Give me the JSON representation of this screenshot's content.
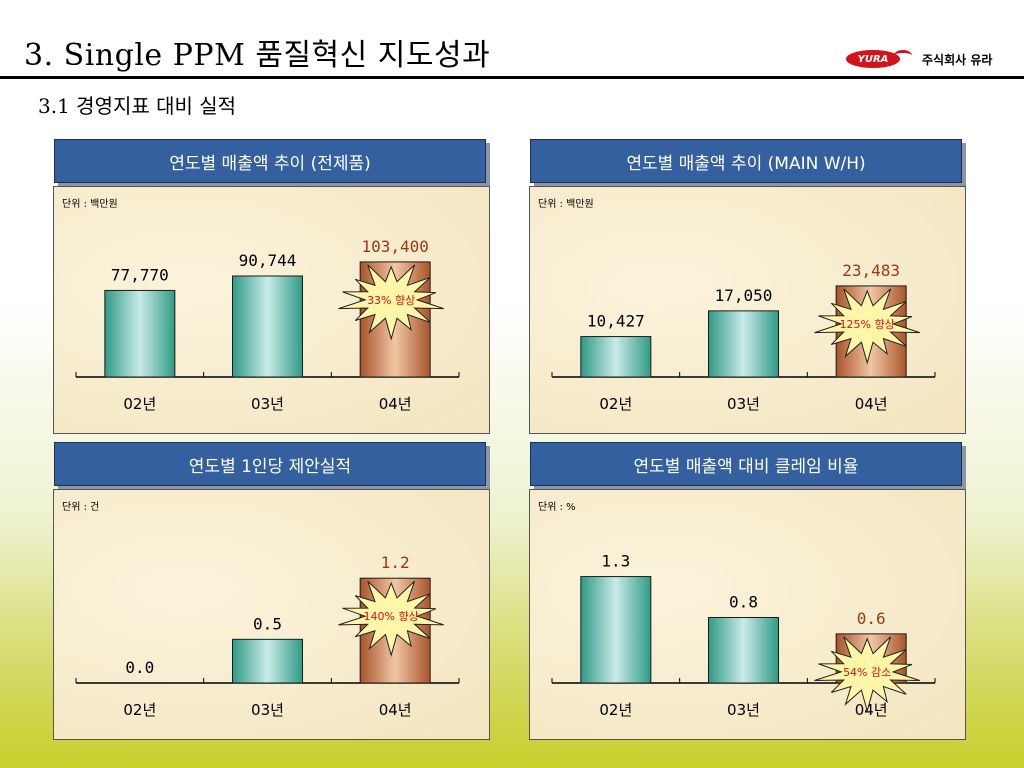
{
  "page": {
    "title": "3. Single PPM 품질혁신 지도성과",
    "subtitle": "3.1 경영지표 대비 실적",
    "logo_mark": "YURA",
    "logo_text": "주식회사 유라"
  },
  "colors": {
    "header_bg": "#34609f",
    "teal_bar": "#2f9b86",
    "orange_bar": "#a8542a",
    "burst_fill": "#fff6a8",
    "burst_text": "#e01010",
    "highlight_text": "#9b3a10",
    "panel_bg": "#f6ebcc"
  },
  "chart_data": [
    {
      "type": "bar",
      "title": "연도별 매출액 추이 (전제품)",
      "unit_label": "단위 : 백만원",
      "categories": [
        "02년",
        "03년",
        "04년"
      ],
      "values": [
        77770,
        90744,
        103400
      ],
      "value_labels": [
        "77,770",
        "90,744",
        "103,400"
      ],
      "highlight_index": 2,
      "burst_label": "33% 향상",
      "ylim": [
        0,
        115000
      ]
    },
    {
      "type": "bar",
      "title": "연도별 매출액 추이 (MAIN W/H)",
      "unit_label": "단위 : 백만원",
      "categories": [
        "02년",
        "03년",
        "04년"
      ],
      "values": [
        10427,
        17050,
        23483
      ],
      "value_labels": [
        "10,427",
        "17,050",
        "23,483"
      ],
      "highlight_index": 2,
      "burst_label": "125% 향상",
      "ylim": [
        0,
        33000
      ]
    },
    {
      "type": "bar",
      "title": "연도별 1인당 제안실적",
      "unit_label": "단위 : 건",
      "categories": [
        "02년",
        "03년",
        "04년"
      ],
      "values": [
        0.0,
        0.5,
        1.2
      ],
      "value_labels": [
        "0.0",
        "0.5",
        "1.2"
      ],
      "highlight_index": 2,
      "burst_label": "140% 향상",
      "ylim": [
        0,
        1.5
      ]
    },
    {
      "type": "bar",
      "title": "연도별 매출액 대비 클레임 비율",
      "unit_label": "단위 : %",
      "categories": [
        "02년",
        "03년",
        "04년"
      ],
      "values": [
        1.3,
        0.8,
        0.6
      ],
      "value_labels": [
        "1.3",
        "0.8",
        "0.6"
      ],
      "highlight_index": 2,
      "burst_label": "54% 감소",
      "ylim": [
        0,
        1.6
      ]
    }
  ]
}
